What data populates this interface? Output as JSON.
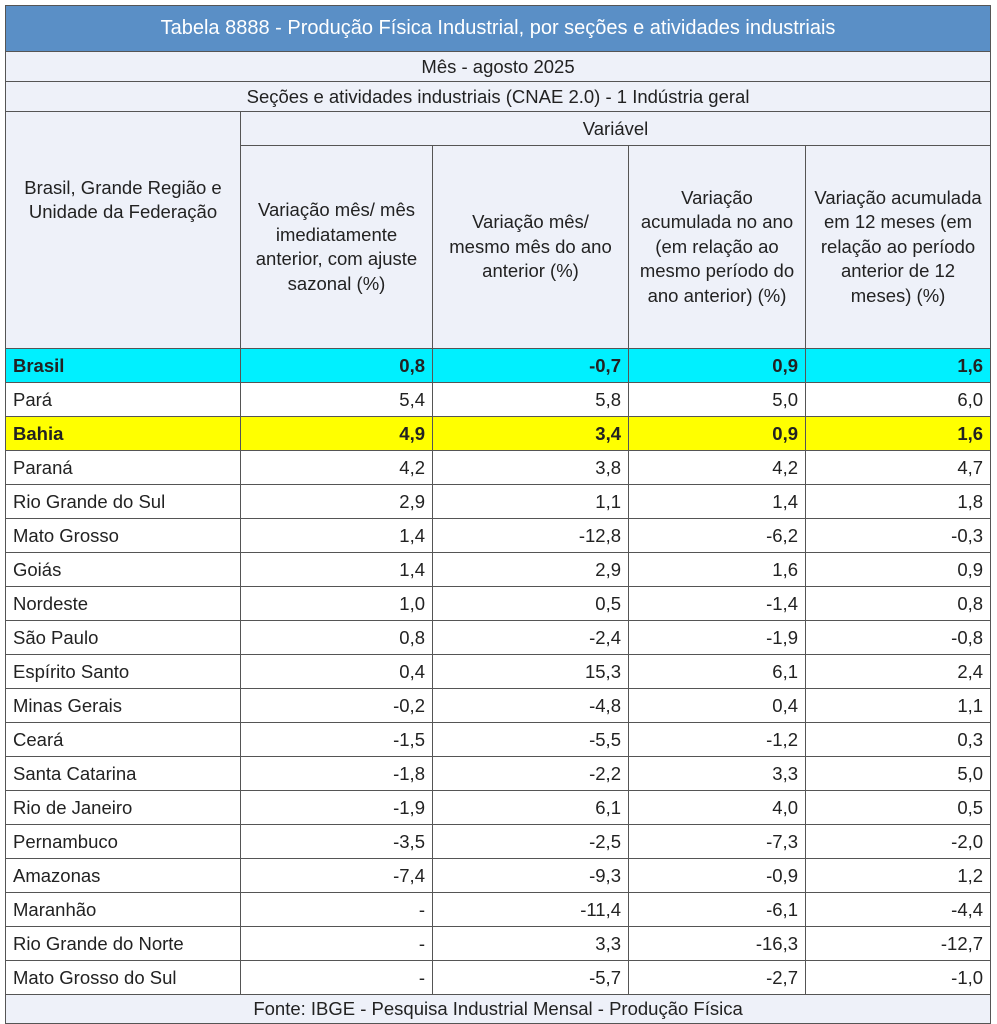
{
  "title": "Tabela 8888 - Produção Física Industrial, por seções e atividades industriais",
  "month": "Mês - agosto 2025",
  "section": "Seções e atividades industriais (CNAE 2.0) - 1 Indústria geral",
  "variable_label": "Variável",
  "columns": [
    "Brasil, Grande Região e Unidade da Federação",
    "Variação mês/ mês imediatamente anterior, com ajuste sazonal (%)",
    "Variação mês/ mesmo mês do ano anterior  (%)",
    "Variação acumulada no ano (em relação ao mesmo período do ano anterior) (%)",
    "Variação acumulada em 12 meses (em relação ao período anterior de 12 meses) (%)"
  ],
  "highlight_colors": {
    "brasil": "#00f0ff",
    "bahia": "#ffff00",
    "title_bg": "#5a8fc6"
  },
  "rows": [
    [
      "Brasil",
      "0,8",
      "-0,7",
      "0,9",
      "1,6"
    ],
    [
      "Pará",
      "5,4",
      "5,8",
      "5,0",
      "6,0"
    ],
    [
      "Bahia",
      "4,9",
      "3,4",
      "0,9",
      "1,6"
    ],
    [
      "Paraná",
      "4,2",
      "3,8",
      "4,2",
      "4,7"
    ],
    [
      "Rio Grande do Sul",
      "2,9",
      "1,1",
      "1,4",
      "1,8"
    ],
    [
      "Mato Grosso",
      "1,4",
      "-12,8",
      "-6,2",
      "-0,3"
    ],
    [
      "Goiás",
      "1,4",
      "2,9",
      "1,6",
      "0,9"
    ],
    [
      "Nordeste",
      "1,0",
      "0,5",
      "-1,4",
      "0,8"
    ],
    [
      "São Paulo",
      "0,8",
      "-2,4",
      "-1,9",
      "-0,8"
    ],
    [
      "Espírito Santo",
      "0,4",
      "15,3",
      "6,1",
      "2,4"
    ],
    [
      "Minas Gerais",
      "-0,2",
      "-4,8",
      "0,4",
      "1,1"
    ],
    [
      "Ceará",
      "-1,5",
      "-5,5",
      "-1,2",
      "0,3"
    ],
    [
      "Santa Catarina",
      "-1,8",
      "-2,2",
      "3,3",
      "5,0"
    ],
    [
      "Rio de Janeiro",
      "-1,9",
      "6,1",
      "4,0",
      "0,5"
    ],
    [
      "Pernambuco",
      "-3,5",
      "-2,5",
      "-7,3",
      "-2,0"
    ],
    [
      "Amazonas",
      "-7,4",
      "-9,3",
      "-0,9",
      "1,2"
    ],
    [
      "Maranhão",
      "-",
      "-11,4",
      "-6,1",
      "-4,4"
    ],
    [
      "Rio Grande do Norte",
      "-",
      "3,3",
      "-16,3",
      "-12,7"
    ],
    [
      "Mato Grosso do Sul",
      "-",
      "-5,7",
      "-2,7",
      "-1,0"
    ]
  ],
  "source": "Fonte: IBGE - Pesquisa Industrial Mensal - Produção Física"
}
